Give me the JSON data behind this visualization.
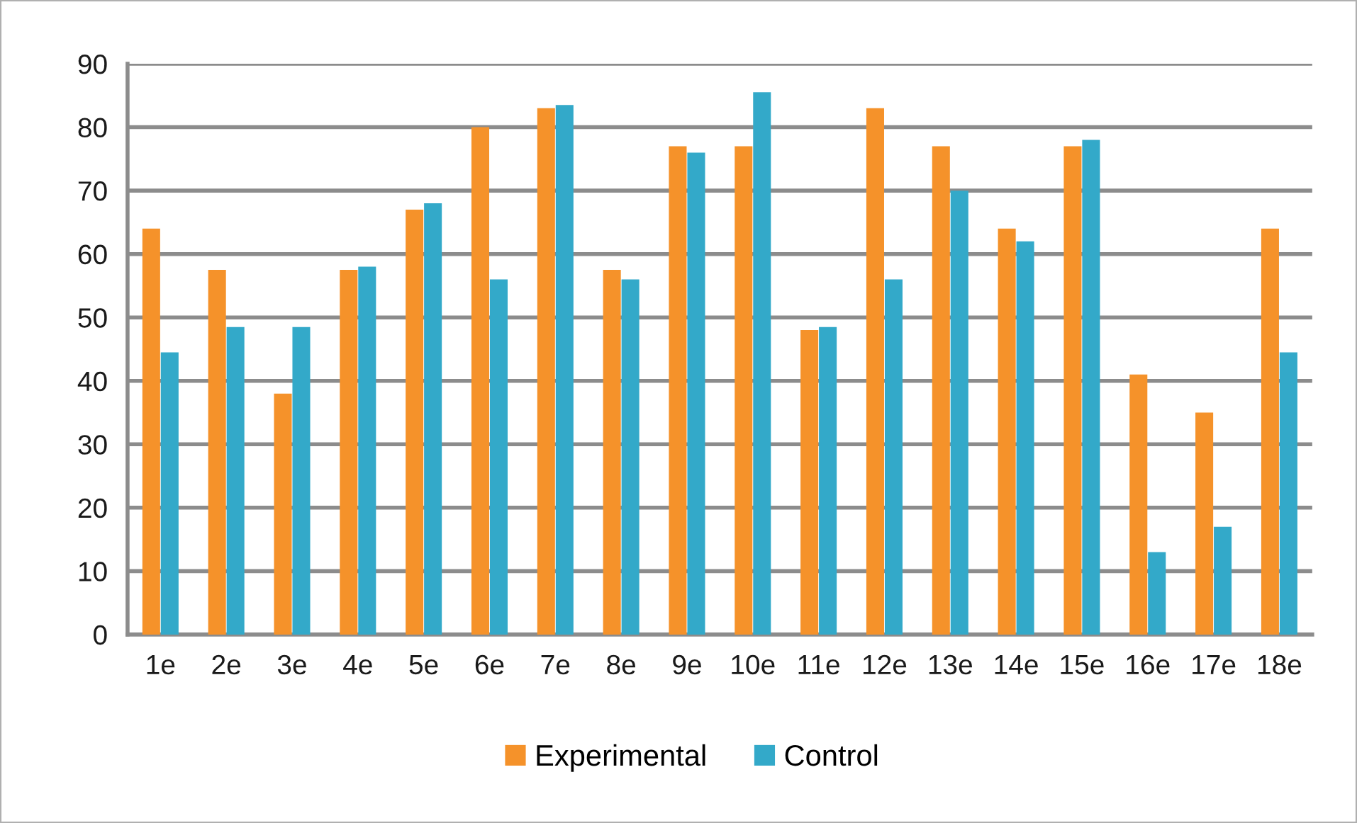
{
  "chart_data": {
    "type": "bar",
    "categories": [
      "1e",
      "2e",
      "3e",
      "4e",
      "5e",
      "6e",
      "7e",
      "8e",
      "9e",
      "10e",
      "11e",
      "12e",
      "13e",
      "14e",
      "15e",
      "16e",
      "17e",
      "18e"
    ],
    "series": [
      {
        "name": "Experimental",
        "color": "#f5922a",
        "values": [
          64,
          57.5,
          38,
          57.5,
          67,
          80,
          83,
          57.5,
          77,
          77,
          48,
          83,
          77,
          64,
          77,
          41,
          35,
          64
        ]
      },
      {
        "name": "Control",
        "color": "#33a9c9",
        "values": [
          44.5,
          48.5,
          48.5,
          58,
          68,
          56,
          83.5,
          56,
          76,
          85.5,
          48.5,
          56,
          70,
          62,
          78,
          13,
          17,
          44.5
        ]
      }
    ],
    "ylim": [
      0,
      90
    ],
    "yticks": [
      0,
      10,
      20,
      30,
      40,
      50,
      60,
      70,
      80,
      90
    ],
    "grid": "y",
    "legend": "bottom"
  }
}
